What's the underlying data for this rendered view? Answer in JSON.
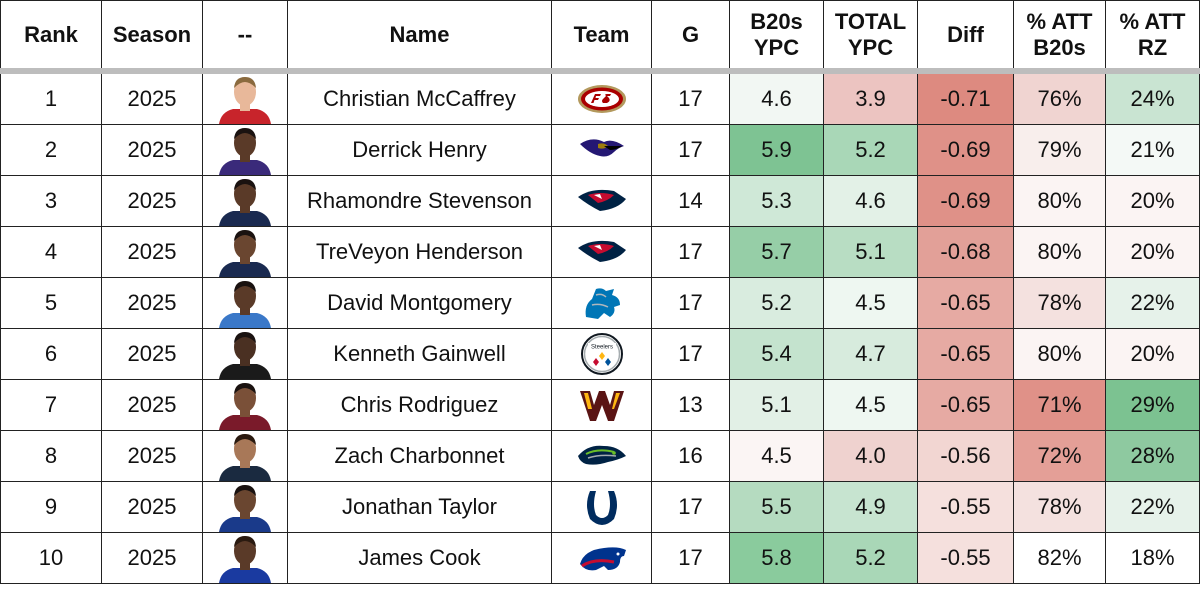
{
  "headers": [
    {
      "key": "rank",
      "label": "Rank"
    },
    {
      "key": "season",
      "label": "Season"
    },
    {
      "key": "photo",
      "label": "--"
    },
    {
      "key": "name",
      "label": "Name"
    },
    {
      "key": "team",
      "label": "Team"
    },
    {
      "key": "g",
      "label": "G"
    },
    {
      "key": "b20s_ypc",
      "label": "B20s\nYPC"
    },
    {
      "key": "total_ypc",
      "label": "TOTAL\nYPC"
    },
    {
      "key": "diff",
      "label": "Diff"
    },
    {
      "key": "pct_att_b20s",
      "label": "% ATT\nB20s"
    },
    {
      "key": "pct_att_rz",
      "label": "% ATT\nRZ"
    }
  ],
  "rows": [
    {
      "rank": "1",
      "season": "2025",
      "name": "Christian McCaffrey",
      "team": "49ers-logo",
      "g": "17",
      "b20s_ypc": "4.6",
      "total_ypc": "3.9",
      "diff": "-0.71",
      "pct_att_b20s": "76%",
      "pct_att_rz": "24%",
      "colors": {
        "b20s_ypc": "#f2f7f3",
        "total_ypc": "#ecc4c1",
        "diff": "#dd8a80",
        "pct_att_b20s": "#f0d4d1",
        "pct_att_rz": "#c9e4d2"
      }
    },
    {
      "rank": "2",
      "season": "2025",
      "name": "Derrick Henry",
      "team": "ravens-logo",
      "g": "17",
      "b20s_ypc": "5.9",
      "total_ypc": "5.2",
      "diff": "-0.69",
      "pct_att_b20s": "79%",
      "pct_att_rz": "21%",
      "colors": {
        "b20s_ypc": "#7ec393",
        "total_ypc": "#a9d7b7",
        "diff": "#df9188",
        "pct_att_b20s": "#f8eeec",
        "pct_att_rz": "#f4f9f6"
      }
    },
    {
      "rank": "3",
      "season": "2025",
      "name": "Rhamondre Stevenson",
      "team": "patriots-logo",
      "g": "14",
      "b20s_ypc": "5.3",
      "total_ypc": "4.6",
      "diff": "-0.69",
      "pct_att_b20s": "80%",
      "pct_att_rz": "20%",
      "colors": {
        "b20s_ypc": "#cfe8d7",
        "total_ypc": "#e3f1e7",
        "diff": "#df9188",
        "pct_att_b20s": "#fbf4f3",
        "pct_att_rz": "#fbf4f3"
      }
    },
    {
      "rank": "4",
      "season": "2025",
      "name": "TreVeyon Henderson",
      "team": "patriots-logo",
      "g": "17",
      "b20s_ypc": "5.7",
      "total_ypc": "5.1",
      "diff": "-0.68",
      "pct_att_b20s": "80%",
      "pct_att_rz": "20%",
      "colors": {
        "b20s_ypc": "#96cea7",
        "total_ypc": "#b8ddc3",
        "diff": "#e2a098",
        "pct_att_b20s": "#fbf4f3",
        "pct_att_rz": "#fbf4f3"
      }
    },
    {
      "rank": "5",
      "season": "2025",
      "name": "David Montgomery",
      "team": "lions-logo",
      "g": "17",
      "b20s_ypc": "5.2",
      "total_ypc": "4.5",
      "diff": "-0.65",
      "pct_att_b20s": "78%",
      "pct_att_rz": "22%",
      "colors": {
        "b20s_ypc": "#d9ecdf",
        "total_ypc": "#eef7f1",
        "diff": "#e6aaa3",
        "pct_att_b20s": "#f4e1df",
        "pct_att_rz": "#e6f2ea"
      }
    },
    {
      "rank": "6",
      "season": "2025",
      "name": "Kenneth Gainwell",
      "team": "steelers-logo",
      "g": "17",
      "b20s_ypc": "5.4",
      "total_ypc": "4.7",
      "diff": "-0.65",
      "pct_att_b20s": "80%",
      "pct_att_rz": "20%",
      "colors": {
        "b20s_ypc": "#c4e3ce",
        "total_ypc": "#d7ebdd",
        "diff": "#e6aaa3",
        "pct_att_b20s": "#fbf4f3",
        "pct_att_rz": "#fbf4f3"
      }
    },
    {
      "rank": "7",
      "season": "2025",
      "name": "Chris Rodriguez",
      "team": "commanders-logo",
      "g": "13",
      "b20s_ypc": "5.1",
      "total_ypc": "4.5",
      "diff": "-0.65",
      "pct_att_b20s": "71%",
      "pct_att_rz": "29%",
      "colors": {
        "b20s_ypc": "#e2f0e6",
        "total_ypc": "#eef7f1",
        "diff": "#e6aaa3",
        "pct_att_b20s": "#e09188",
        "pct_att_rz": "#7cc291"
      }
    },
    {
      "rank": "8",
      "season": "2025",
      "name": "Zach Charbonnet",
      "team": "seahawks-logo",
      "g": "16",
      "b20s_ypc": "4.5",
      "total_ypc": "4.0",
      "diff": "-0.56",
      "pct_att_b20s": "72%",
      "pct_att_rz": "28%",
      "colors": {
        "b20s_ypc": "#fbf5f4",
        "total_ypc": "#efd2cf",
        "diff": "#f2d6d2",
        "pct_att_b20s": "#e49f97",
        "pct_att_rz": "#8ec9a0"
      }
    },
    {
      "rank": "9",
      "season": "2025",
      "name": "Jonathan Taylor",
      "team": "colts-logo",
      "g": "17",
      "b20s_ypc": "5.5",
      "total_ypc": "4.9",
      "diff": "-0.55",
      "pct_att_b20s": "78%",
      "pct_att_rz": "22%",
      "colors": {
        "b20s_ypc": "#b5dbc0",
        "total_ypc": "#c7e4d0",
        "diff": "#f5e0dd",
        "pct_att_b20s": "#f4e1df",
        "pct_att_rz": "#e6f2ea"
      }
    },
    {
      "rank": "10",
      "season": "2025",
      "name": "James Cook",
      "team": "bills-logo",
      "g": "17",
      "b20s_ypc": "5.8",
      "total_ypc": "5.2",
      "diff": "-0.55",
      "pct_att_b20s": "82%",
      "pct_att_rz": "18%",
      "colors": {
        "b20s_ypc": "#8acb9d",
        "total_ypc": "#a9d7b7",
        "diff": "#f5e0dd",
        "pct_att_b20s": "#ffffff",
        "pct_att_rz": "#ffffff"
      }
    }
  ],
  "photo_colors": [
    {
      "skin": "#e8b89a",
      "hair": "#8a6a3e",
      "jersey": "#c8242b"
    },
    {
      "skin": "#5a3a28",
      "hair": "#1a1210",
      "jersey": "#3a2a7a"
    },
    {
      "skin": "#5a3a28",
      "hair": "#1a1210",
      "jersey": "#1a2a50"
    },
    {
      "skin": "#6a4630",
      "hair": "#1a1210",
      "jersey": "#1a2a50"
    },
    {
      "skin": "#5a3a28",
      "hair": "#1a1210",
      "jersey": "#3a78c8"
    },
    {
      "skin": "#4a3022",
      "hair": "#1a1210",
      "jersey": "#1a1a1a"
    },
    {
      "skin": "#7a5038",
      "hair": "#1a1210",
      "jersey": "#7a1a2a"
    },
    {
      "skin": "#a87858",
      "hair": "#2a1a10",
      "jersey": "#1a2a40"
    },
    {
      "skin": "#6a4630",
      "hair": "#1a1210",
      "jersey": "#1a3a8a"
    },
    {
      "skin": "#5a3a28",
      "hair": "#2a1a10",
      "jersey": "#1a3aa0"
    }
  ]
}
